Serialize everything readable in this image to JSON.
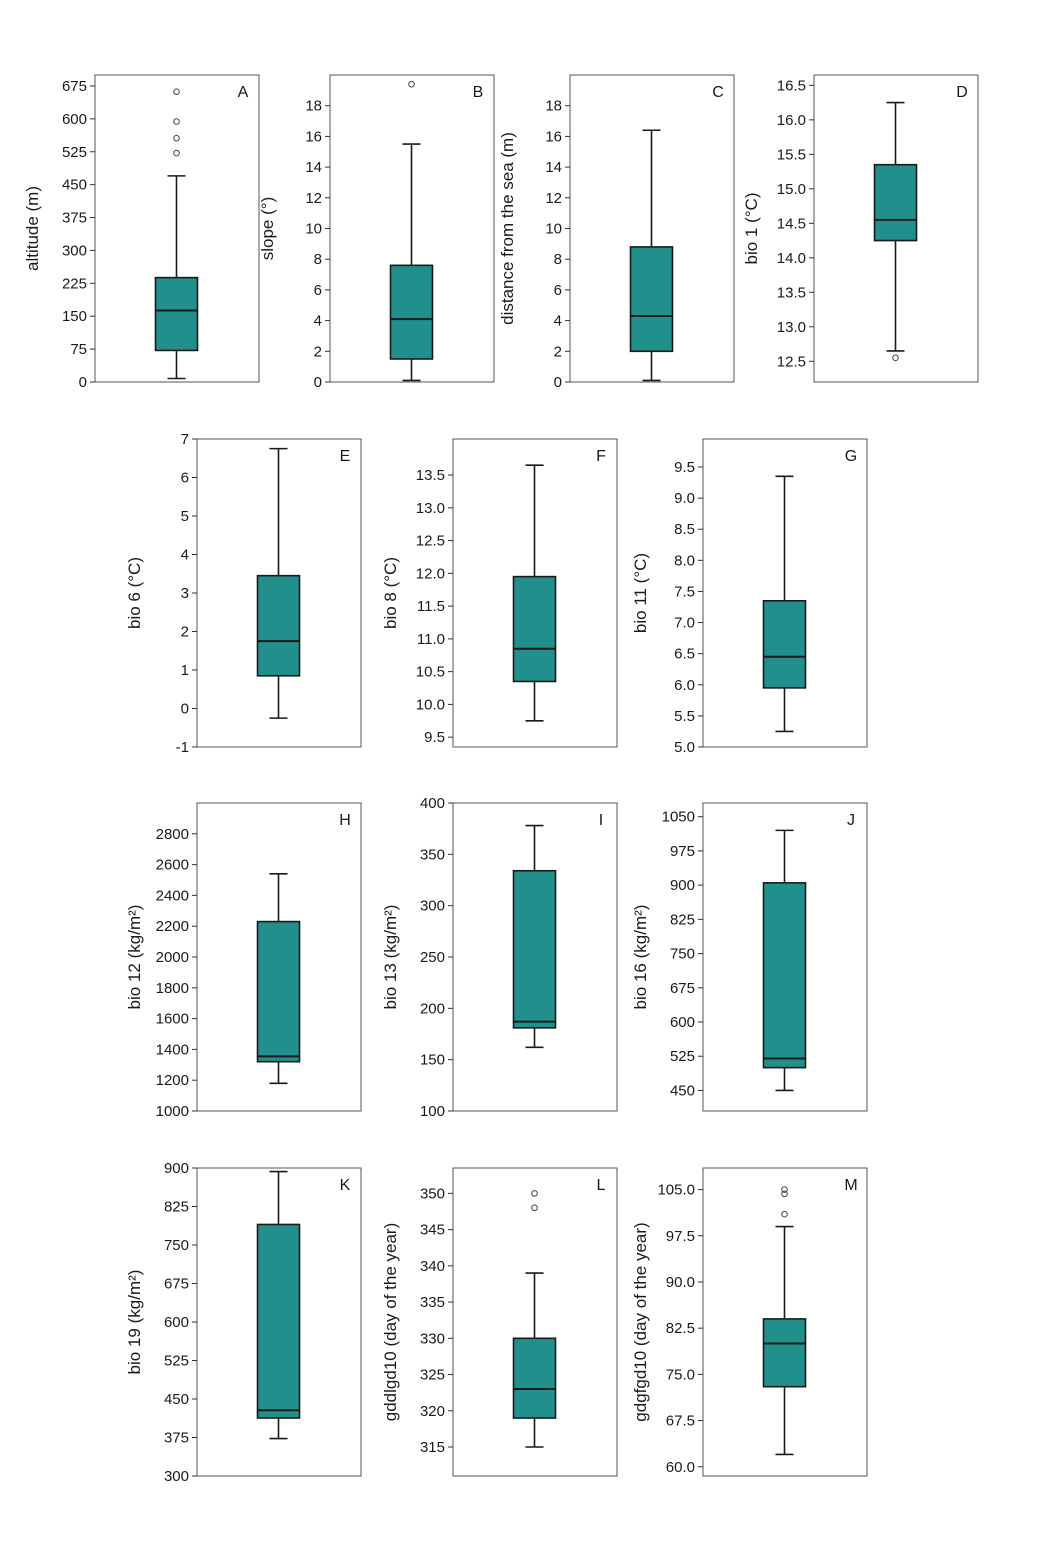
{
  "colors": {
    "box_fill": "#21908C",
    "frame": "#555555",
    "text": "#1a1a1a"
  },
  "chart_data": [
    {
      "letter": "A",
      "type": "box",
      "ylabel": "altitude (m)",
      "ylim": [
        0,
        700
      ],
      "yticks": [
        "0",
        "75",
        "150",
        "225",
        "300",
        "375",
        "450",
        "525",
        "600",
        "675"
      ],
      "whisker_low": 8,
      "q1": 72,
      "median": 163,
      "q3": 238,
      "whisker_high": 470,
      "outliers": [
        522,
        556,
        594,
        662
      ]
    },
    {
      "letter": "B",
      "type": "box",
      "ylabel": "slope (°)",
      "ylim": [
        0,
        20
      ],
      "yticks": [
        "0",
        "2",
        "4",
        "6",
        "8",
        "10",
        "12",
        "14",
        "16",
        "18"
      ],
      "whisker_low": 0.1,
      "q1": 1.5,
      "median": 4.1,
      "q3": 7.6,
      "whisker_high": 15.5,
      "outliers": [
        19.4
      ]
    },
    {
      "letter": "C",
      "type": "box",
      "ylabel": "distance from the sea (m)",
      "ylim": [
        0,
        20
      ],
      "yticks": [
        "0",
        "2",
        "4",
        "6",
        "8",
        "10",
        "12",
        "14",
        "16",
        "18"
      ],
      "whisker_low": 0.1,
      "q1": 2.0,
      "median": 4.3,
      "q3": 8.8,
      "whisker_high": 16.4,
      "outliers": []
    },
    {
      "letter": "D",
      "type": "box",
      "ylabel": "bio 1 (°C)",
      "ylim": [
        12.2,
        16.65
      ],
      "yticks": [
        "12.5",
        "13.0",
        "13.5",
        "14.0",
        "14.5",
        "15.0",
        "15.5",
        "16.0",
        "16.5"
      ],
      "whisker_low": 12.65,
      "q1": 14.25,
      "median": 14.55,
      "q3": 15.35,
      "whisker_high": 16.25,
      "outliers": [
        12.55
      ]
    },
    {
      "letter": "E",
      "type": "box",
      "ylabel": "bio 6 (°C)",
      "ylim": [
        -1,
        7
      ],
      "yticks": [
        "-1",
        "0",
        "1",
        "2",
        "3",
        "4",
        "5",
        "6",
        "7"
      ],
      "whisker_low": -0.25,
      "q1": 0.85,
      "median": 1.75,
      "q3": 3.45,
      "whisker_high": 6.75,
      "outliers": []
    },
    {
      "letter": "F",
      "type": "box",
      "ylabel": "bio 8 (°C)",
      "ylim": [
        9.35,
        14.05
      ],
      "yticks": [
        "9.5",
        "10.0",
        "10.5",
        "11.0",
        "11.5",
        "12.0",
        "12.5",
        "13.0",
        "13.5"
      ],
      "whisker_low": 9.75,
      "q1": 10.35,
      "median": 10.85,
      "q3": 11.95,
      "whisker_high": 13.65,
      "outliers": []
    },
    {
      "letter": "G",
      "type": "box",
      "ylabel": "bio 11 (°C)",
      "ylim": [
        5.0,
        9.95
      ],
      "yticks": [
        "5.0",
        "5.5",
        "6.0",
        "6.5",
        "7.0",
        "7.5",
        "8.0",
        "8.5",
        "9.0",
        "9.5"
      ],
      "whisker_low": 5.25,
      "q1": 5.95,
      "median": 6.45,
      "q3": 7.35,
      "whisker_high": 9.35,
      "outliers": []
    },
    {
      "letter": "H",
      "type": "box",
      "ylabel": "bio 12 (kg/m²)",
      "ylim": [
        1000,
        3000
      ],
      "yticks": [
        "1000",
        "1200",
        "1400",
        "1600",
        "1800",
        "2000",
        "2200",
        "2400",
        "2600",
        "2800"
      ],
      "whisker_low": 1180,
      "q1": 1320,
      "median": 1355,
      "q3": 2230,
      "whisker_high": 2540,
      "outliers": []
    },
    {
      "letter": "I",
      "type": "box",
      "ylabel": "bio 13 (kg/m²)",
      "ylim": [
        100,
        400
      ],
      "yticks": [
        "100",
        "150",
        "200",
        "250",
        "300",
        "350",
        "400"
      ],
      "whisker_low": 162,
      "q1": 181,
      "median": 187,
      "q3": 334,
      "whisker_high": 378,
      "outliers": []
    },
    {
      "letter": "J",
      "type": "box",
      "ylabel": "bio 16 (kg/m²)",
      "ylim": [
        405,
        1080
      ],
      "yticks": [
        "450",
        "525",
        "600",
        "675",
        "750",
        "825",
        "900",
        "975",
        "1050"
      ],
      "whisker_low": 450,
      "q1": 500,
      "median": 520,
      "q3": 905,
      "whisker_high": 1020,
      "outliers": []
    },
    {
      "letter": "K",
      "type": "box",
      "ylabel": "bio 19 (kg/m²)",
      "ylim": [
        300,
        900
      ],
      "yticks": [
        "300",
        "375",
        "450",
        "525",
        "600",
        "675",
        "750",
        "825",
        "900"
      ],
      "whisker_low": 373,
      "q1": 413,
      "median": 428,
      "q3": 790,
      "whisker_high": 893,
      "outliers": []
    },
    {
      "letter": "L",
      "type": "box",
      "ylabel": "gddlgd10 (day of the year)",
      "ylim": [
        311,
        353.5
      ],
      "yticks": [
        "315",
        "320",
        "325",
        "330",
        "335",
        "340",
        "345",
        "350"
      ],
      "whisker_low": 315,
      "q1": 319,
      "median": 323,
      "q3": 330,
      "whisker_high": 339,
      "outliers": [
        348,
        350
      ]
    },
    {
      "letter": "M",
      "type": "box",
      "ylabel": "gdgfgd10 (day of the year)",
      "ylim": [
        58.5,
        108.5
      ],
      "yticks": [
        "60.0",
        "67.5",
        "75.0",
        "82.5",
        "90.0",
        "97.5",
        "105.0"
      ],
      "whisker_low": 62,
      "q1": 73,
      "median": 80,
      "q3": 84,
      "whisker_high": 99,
      "outliers": [
        101,
        104.3,
        105
      ]
    }
  ]
}
